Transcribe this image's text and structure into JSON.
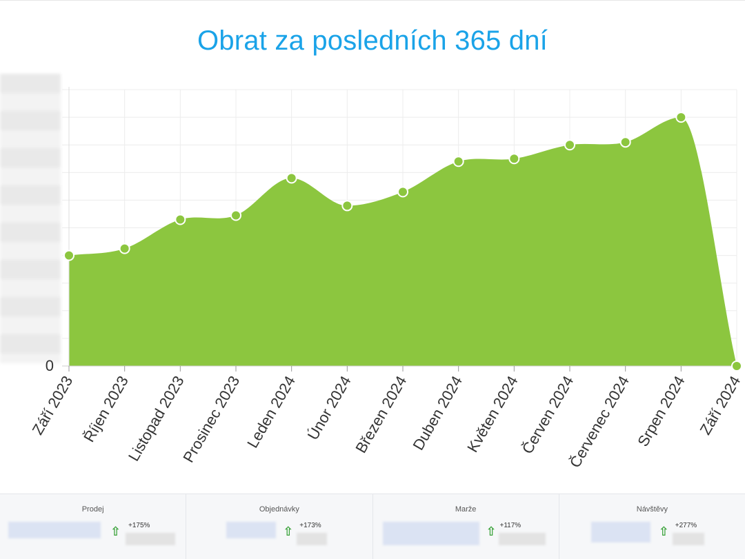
{
  "chart_data": {
    "type": "area",
    "title": "Obrat za posledních 365 dní",
    "categories": [
      "Září 2023",
      "Říjen 2023",
      "Listopad 2023",
      "Prosinec 2023",
      "Leden 2024",
      "Únor 2024",
      "Březen 2024",
      "Duben 2024",
      "Květen 2024",
      "Červen 2024",
      "Červenec 2024",
      "Srpen 2024",
      "Září 2024"
    ],
    "values": [
      40,
      42.5,
      53,
      54.5,
      68,
      58,
      63,
      74,
      75,
      80,
      81,
      90,
      0
    ],
    "ylim": [
      0,
      100
    ],
    "y_tick_labels": [
      "0"
    ],
    "grid": true,
    "colors": {
      "fill": "#8cc63f",
      "point": "#8cc63f",
      "title": "#1aa3e8"
    }
  },
  "stats": [
    {
      "title": "Prodej",
      "change": "+175%"
    },
    {
      "title": "Objednávky",
      "change": "+173%"
    },
    {
      "title": "Marže",
      "change": "+117%"
    },
    {
      "title": "Návštěvy",
      "change": "+277%"
    }
  ]
}
